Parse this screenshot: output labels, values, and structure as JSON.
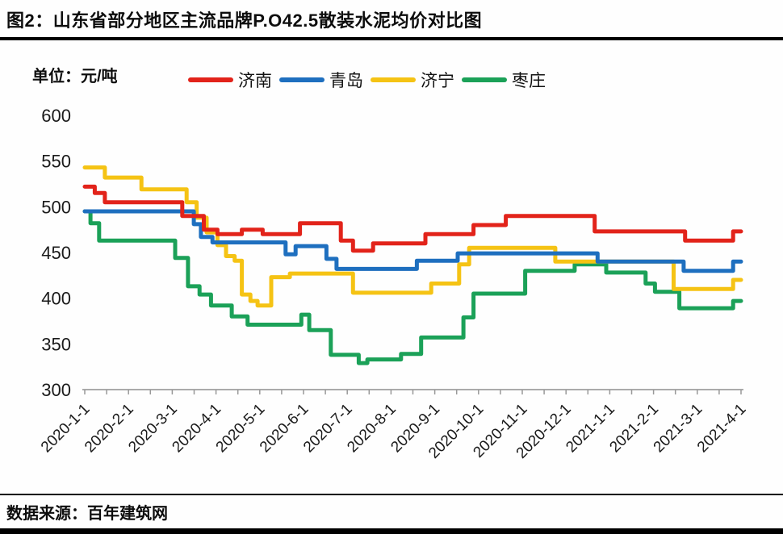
{
  "header": {
    "title": "图2：山东省部分地区主流品牌P.O42.5散装水泥均价对比图"
  },
  "chart": {
    "unit_label": "单位：元/吨",
    "y_axis": {
      "ticks": [
        600,
        550,
        500,
        450,
        400,
        350,
        300
      ]
    },
    "x_axis": {
      "labels": [
        "2020-1-1",
        "2020-2-1",
        "2020-3-1",
        "2020-4-1",
        "2020-5-1",
        "2020-6-1",
        "2020-7-1",
        "2020-8-1",
        "2020-9-1",
        "2020-10-1",
        "2020-11-1",
        "2020-12-1",
        "2021-1-1",
        "2021-2-1",
        "2021-3-1",
        "2021-4-1"
      ]
    },
    "axis_color": "#ababab",
    "tick_color": "#999999",
    "label_color": "#1a1a1a"
  },
  "legend": {
    "items": [
      {
        "label": "济南",
        "color": "#e2231a"
      },
      {
        "label": "青岛",
        "color": "#1e6fbf"
      },
      {
        "label": "济宁",
        "color": "#f5c314"
      },
      {
        "label": "枣庄",
        "color": "#1ba158"
      }
    ]
  },
  "footer": {
    "source": "数据来源：百年建筑网"
  },
  "chart_data": {
    "type": "line",
    "title": "山东省部分地区主流品牌P.O42.5散装水泥均价对比图",
    "ylabel": "元/吨",
    "y_range": [
      300,
      600
    ],
    "x_range": [
      "2020-01-01",
      "2021-04-01"
    ],
    "grid": false,
    "legend_position": "top",
    "interpolation": "step-after",
    "series": [
      {
        "name": "济南",
        "color": "#e2231a",
        "points": [
          [
            "2020-01-01",
            522
          ],
          [
            "2020-01-08",
            515
          ],
          [
            "2020-01-15",
            505
          ],
          [
            "2020-03-08",
            490
          ],
          [
            "2020-03-23",
            475
          ],
          [
            "2020-04-02",
            470
          ],
          [
            "2020-04-19",
            475
          ],
          [
            "2020-05-03",
            470
          ],
          [
            "2020-05-29",
            482
          ],
          [
            "2020-06-27",
            463
          ],
          [
            "2020-07-05",
            452
          ],
          [
            "2020-07-19",
            460
          ],
          [
            "2020-08-25",
            470
          ],
          [
            "2020-09-28",
            480
          ],
          [
            "2020-10-20",
            490
          ],
          [
            "2020-12-21",
            473
          ],
          [
            "2021-02-23",
            463
          ],
          [
            "2021-03-26",
            473
          ],
          [
            "2021-04-01",
            473
          ]
        ]
      },
      {
        "name": "青岛",
        "color": "#1e6fbf",
        "points": [
          [
            "2020-01-01",
            495
          ],
          [
            "2020-03-16",
            481
          ],
          [
            "2020-03-21",
            467
          ],
          [
            "2020-03-29",
            461
          ],
          [
            "2020-05-19",
            448
          ],
          [
            "2020-05-26",
            457
          ],
          [
            "2020-06-17",
            443
          ],
          [
            "2020-06-24",
            432
          ],
          [
            "2020-08-19",
            441
          ],
          [
            "2020-09-17",
            449
          ],
          [
            "2020-12-23",
            440
          ],
          [
            "2021-02-22",
            430
          ],
          [
            "2021-03-26",
            440
          ],
          [
            "2021-04-01",
            440
          ]
        ]
      },
      {
        "name": "济宁",
        "color": "#f5c314",
        "points": [
          [
            "2020-01-01",
            543
          ],
          [
            "2020-01-15",
            532
          ],
          [
            "2020-02-10",
            519
          ],
          [
            "2020-03-11",
            505
          ],
          [
            "2020-03-18",
            488
          ],
          [
            "2020-03-25",
            472
          ],
          [
            "2020-04-02",
            458
          ],
          [
            "2020-04-08",
            446
          ],
          [
            "2020-04-14",
            441
          ],
          [
            "2020-04-19",
            404
          ],
          [
            "2020-04-25",
            397
          ],
          [
            "2020-04-30",
            392
          ],
          [
            "2020-05-09",
            423
          ],
          [
            "2020-05-22",
            427
          ],
          [
            "2020-07-05",
            406
          ],
          [
            "2020-08-29",
            416
          ],
          [
            "2020-09-18",
            437
          ],
          [
            "2020-09-25",
            455
          ],
          [
            "2020-11-24",
            440
          ],
          [
            "2021-02-15",
            410
          ],
          [
            "2021-03-26",
            420
          ],
          [
            "2021-04-01",
            420
          ]
        ]
      },
      {
        "name": "枣庄",
        "color": "#1ba158",
        "points": [
          [
            "2020-01-01",
            495
          ],
          [
            "2020-01-05",
            482
          ],
          [
            "2020-01-11",
            463
          ],
          [
            "2020-03-03",
            444
          ],
          [
            "2020-03-12",
            413
          ],
          [
            "2020-03-20",
            404
          ],
          [
            "2020-03-28",
            392
          ],
          [
            "2020-04-12",
            380
          ],
          [
            "2020-04-23",
            371
          ],
          [
            "2020-05-30",
            382
          ],
          [
            "2020-06-05",
            365
          ],
          [
            "2020-06-20",
            338
          ],
          [
            "2020-07-09",
            329
          ],
          [
            "2020-07-15",
            333
          ],
          [
            "2020-08-08",
            339
          ],
          [
            "2020-08-22",
            357
          ],
          [
            "2020-09-21",
            379
          ],
          [
            "2020-09-28",
            405
          ],
          [
            "2020-11-03",
            430
          ],
          [
            "2020-12-07",
            437
          ],
          [
            "2020-12-29",
            428
          ],
          [
            "2021-01-26",
            416
          ],
          [
            "2021-02-02",
            407
          ],
          [
            "2021-02-19",
            389
          ],
          [
            "2021-03-26",
            397
          ],
          [
            "2021-04-01",
            397
          ]
        ]
      }
    ]
  }
}
